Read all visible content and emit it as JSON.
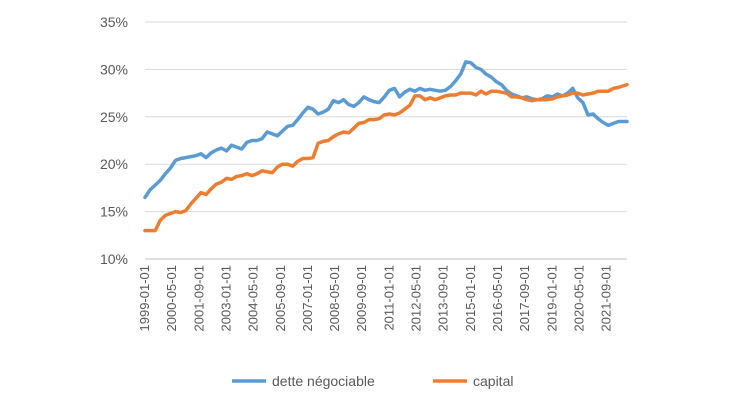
{
  "chart_data": {
    "type": "line",
    "title": "",
    "xlabel": "",
    "ylabel": "",
    "ylim": [
      0.1,
      0.35
    ],
    "y_ticks": [
      {
        "value": 0.1,
        "label": "10%"
      },
      {
        "value": 0.15,
        "label": "15%"
      },
      {
        "value": 0.2,
        "label": "20%"
      },
      {
        "value": 0.25,
        "label": "25%"
      },
      {
        "value": 0.3,
        "label": "30%"
      },
      {
        "value": 0.35,
        "label": "35%"
      }
    ],
    "x_range": [
      "1999-01-01",
      "2022-09-01"
    ],
    "x_ticks": [
      "1999-01-01",
      "2000-05-01",
      "2001-09-01",
      "2003-01-01",
      "2004-05-01",
      "2005-09-01",
      "2007-01-01",
      "2008-05-01",
      "2009-09-01",
      "2011-01-01",
      "2012-05-01",
      "2013-09-01",
      "2015-01-01",
      "2016-05-01",
      "2017-09-01",
      "2019-01-01",
      "2020-05-01",
      "2021-09-01"
    ],
    "grid": "horizontal",
    "legend_position": "bottom",
    "series": [
      {
        "name": "dette négociable",
        "color": "#5B9BD5",
        "points": [
          [
            "1999-01-01",
            0.165
          ],
          [
            "1999-04-01",
            0.173
          ],
          [
            "1999-07-01",
            0.178
          ],
          [
            "1999-10-01",
            0.183
          ],
          [
            "2000-01-01",
            0.19
          ],
          [
            "2000-04-01",
            0.196
          ],
          [
            "2000-07-01",
            0.204
          ],
          [
            "2000-10-01",
            0.206
          ],
          [
            "2001-01-01",
            0.207
          ],
          [
            "2001-04-01",
            0.208
          ],
          [
            "2001-07-01",
            0.209
          ],
          [
            "2001-10-01",
            0.211
          ],
          [
            "2002-01-01",
            0.207
          ],
          [
            "2002-04-01",
            0.212
          ],
          [
            "2002-07-01",
            0.215
          ],
          [
            "2002-10-01",
            0.217
          ],
          [
            "2003-01-01",
            0.214
          ],
          [
            "2003-04-01",
            0.22
          ],
          [
            "2003-07-01",
            0.218
          ],
          [
            "2003-10-01",
            0.216
          ],
          [
            "2004-01-01",
            0.223
          ],
          [
            "2004-04-01",
            0.225
          ],
          [
            "2004-07-01",
            0.225
          ],
          [
            "2004-10-01",
            0.227
          ],
          [
            "2005-01-01",
            0.234
          ],
          [
            "2005-04-01",
            0.232
          ],
          [
            "2005-07-01",
            0.23
          ],
          [
            "2005-10-01",
            0.235
          ],
          [
            "2006-01-01",
            0.24
          ],
          [
            "2006-04-01",
            0.241
          ],
          [
            "2006-07-01",
            0.247
          ],
          [
            "2006-10-01",
            0.254
          ],
          [
            "2007-01-01",
            0.26
          ],
          [
            "2007-04-01",
            0.258
          ],
          [
            "2007-07-01",
            0.253
          ],
          [
            "2007-10-01",
            0.255
          ],
          [
            "2008-01-01",
            0.258
          ],
          [
            "2008-04-01",
            0.267
          ],
          [
            "2008-07-01",
            0.265
          ],
          [
            "2008-10-01",
            0.268
          ],
          [
            "2009-01-01",
            0.263
          ],
          [
            "2009-04-01",
            0.261
          ],
          [
            "2009-07-01",
            0.265
          ],
          [
            "2009-10-01",
            0.271
          ],
          [
            "2010-01-01",
            0.268
          ],
          [
            "2010-04-01",
            0.266
          ],
          [
            "2010-07-01",
            0.265
          ],
          [
            "2010-10-01",
            0.271
          ],
          [
            "2011-01-01",
            0.278
          ],
          [
            "2011-04-01",
            0.28
          ],
          [
            "2011-07-01",
            0.271
          ],
          [
            "2011-10-01",
            0.276
          ],
          [
            "2012-01-01",
            0.279
          ],
          [
            "2012-04-01",
            0.277
          ],
          [
            "2012-07-01",
            0.28
          ],
          [
            "2012-10-01",
            0.278
          ],
          [
            "2013-01-01",
            0.279
          ],
          [
            "2013-04-01",
            0.278
          ],
          [
            "2013-07-01",
            0.277
          ],
          [
            "2013-10-01",
            0.278
          ],
          [
            "2014-01-01",
            0.282
          ],
          [
            "2014-04-01",
            0.288
          ],
          [
            "2014-07-01",
            0.295
          ],
          [
            "2014-10-01",
            0.308
          ],
          [
            "2015-01-01",
            0.307
          ],
          [
            "2015-04-01",
            0.302
          ],
          [
            "2015-07-01",
            0.3
          ],
          [
            "2015-10-01",
            0.295
          ],
          [
            "2016-01-01",
            0.292
          ],
          [
            "2016-04-01",
            0.287
          ],
          [
            "2016-07-01",
            0.284
          ],
          [
            "2016-10-01",
            0.278
          ],
          [
            "2017-01-01",
            0.274
          ],
          [
            "2017-04-01",
            0.272
          ],
          [
            "2017-07-01",
            0.27
          ],
          [
            "2017-10-01",
            0.271
          ],
          [
            "2018-01-01",
            0.269
          ],
          [
            "2018-04-01",
            0.268
          ],
          [
            "2018-07-01",
            0.269
          ],
          [
            "2018-10-01",
            0.272
          ],
          [
            "2019-01-01",
            0.271
          ],
          [
            "2019-04-01",
            0.274
          ],
          [
            "2019-07-01",
            0.272
          ],
          [
            "2019-10-01",
            0.275
          ],
          [
            "2020-01-01",
            0.28
          ],
          [
            "2020-04-01",
            0.27
          ],
          [
            "2020-07-01",
            0.265
          ],
          [
            "2020-10-01",
            0.252
          ],
          [
            "2021-01-01",
            0.253
          ],
          [
            "2021-04-01",
            0.248
          ],
          [
            "2021-07-01",
            0.244
          ],
          [
            "2021-10-01",
            0.241
          ],
          [
            "2022-01-01",
            0.243
          ],
          [
            "2022-04-01",
            0.245
          ],
          [
            "2022-09-01",
            0.245
          ]
        ]
      },
      {
        "name": "capital",
        "color": "#ED7D31",
        "points": [
          [
            "1999-01-01",
            0.13
          ],
          [
            "1999-04-01",
            0.13
          ],
          [
            "1999-07-01",
            0.13
          ],
          [
            "1999-10-01",
            0.141
          ],
          [
            "2000-01-01",
            0.146
          ],
          [
            "2000-04-01",
            0.148
          ],
          [
            "2000-07-01",
            0.15
          ],
          [
            "2000-10-01",
            0.149
          ],
          [
            "2001-01-01",
            0.151
          ],
          [
            "2001-04-01",
            0.158
          ],
          [
            "2001-07-01",
            0.164
          ],
          [
            "2001-10-01",
            0.17
          ],
          [
            "2002-01-01",
            0.168
          ],
          [
            "2002-04-01",
            0.174
          ],
          [
            "2002-07-01",
            0.179
          ],
          [
            "2002-10-01",
            0.181
          ],
          [
            "2003-01-01",
            0.185
          ],
          [
            "2003-04-01",
            0.184
          ],
          [
            "2003-07-01",
            0.187
          ],
          [
            "2003-10-01",
            0.188
          ],
          [
            "2004-01-01",
            0.19
          ],
          [
            "2004-04-01",
            0.188
          ],
          [
            "2004-07-01",
            0.19
          ],
          [
            "2004-10-01",
            0.193
          ],
          [
            "2005-01-01",
            0.192
          ],
          [
            "2005-04-01",
            0.191
          ],
          [
            "2005-07-01",
            0.197
          ],
          [
            "2005-10-01",
            0.2
          ],
          [
            "2006-01-01",
            0.2
          ],
          [
            "2006-04-01",
            0.198
          ],
          [
            "2006-07-01",
            0.203
          ],
          [
            "2006-10-01",
            0.206
          ],
          [
            "2007-01-01",
            0.206
          ],
          [
            "2007-04-01",
            0.207
          ],
          [
            "2007-07-01",
            0.222
          ],
          [
            "2007-10-01",
            0.224
          ],
          [
            "2008-01-01",
            0.225
          ],
          [
            "2008-04-01",
            0.229
          ],
          [
            "2008-07-01",
            0.232
          ],
          [
            "2008-10-01",
            0.234
          ],
          [
            "2009-01-01",
            0.233
          ],
          [
            "2009-04-01",
            0.238
          ],
          [
            "2009-07-01",
            0.243
          ],
          [
            "2009-10-01",
            0.244
          ],
          [
            "2010-01-01",
            0.247
          ],
          [
            "2010-04-01",
            0.247
          ],
          [
            "2010-07-01",
            0.248
          ],
          [
            "2010-10-01",
            0.252
          ],
          [
            "2011-01-01",
            0.253
          ],
          [
            "2011-04-01",
            0.252
          ],
          [
            "2011-07-01",
            0.254
          ],
          [
            "2011-10-01",
            0.258
          ],
          [
            "2012-01-01",
            0.262
          ],
          [
            "2012-04-01",
            0.272
          ],
          [
            "2012-07-01",
            0.272
          ],
          [
            "2012-10-01",
            0.268
          ],
          [
            "2013-01-01",
            0.27
          ],
          [
            "2013-04-01",
            0.268
          ],
          [
            "2013-07-01",
            0.27
          ],
          [
            "2013-10-01",
            0.272
          ],
          [
            "2014-01-01",
            0.273
          ],
          [
            "2014-04-01",
            0.273
          ],
          [
            "2014-07-01",
            0.275
          ],
          [
            "2014-10-01",
            0.275
          ],
          [
            "2015-01-01",
            0.275
          ],
          [
            "2015-04-01",
            0.273
          ],
          [
            "2015-07-01",
            0.277
          ],
          [
            "2015-10-01",
            0.274
          ],
          [
            "2016-01-01",
            0.277
          ],
          [
            "2016-04-01",
            0.277
          ],
          [
            "2016-07-01",
            0.276
          ],
          [
            "2016-10-01",
            0.275
          ],
          [
            "2017-01-01",
            0.271
          ],
          [
            "2017-04-01",
            0.271
          ],
          [
            "2017-07-01",
            0.27
          ],
          [
            "2017-10-01",
            0.268
          ],
          [
            "2018-01-01",
            0.267
          ],
          [
            "2018-04-01",
            0.268
          ],
          [
            "2018-07-01",
            0.268
          ],
          [
            "2018-10-01",
            0.268
          ],
          [
            "2019-01-01",
            0.269
          ],
          [
            "2019-04-01",
            0.271
          ],
          [
            "2019-07-01",
            0.272
          ],
          [
            "2019-10-01",
            0.273
          ],
          [
            "2020-01-01",
            0.275
          ],
          [
            "2020-04-01",
            0.275
          ],
          [
            "2020-07-01",
            0.273
          ],
          [
            "2020-10-01",
            0.274
          ],
          [
            "2021-01-01",
            0.275
          ],
          [
            "2021-04-01",
            0.277
          ],
          [
            "2021-07-01",
            0.277
          ],
          [
            "2021-10-01",
            0.277
          ],
          [
            "2022-01-01",
            0.28
          ],
          [
            "2022-04-01",
            0.281
          ],
          [
            "2022-09-01",
            0.284
          ]
        ]
      }
    ]
  }
}
